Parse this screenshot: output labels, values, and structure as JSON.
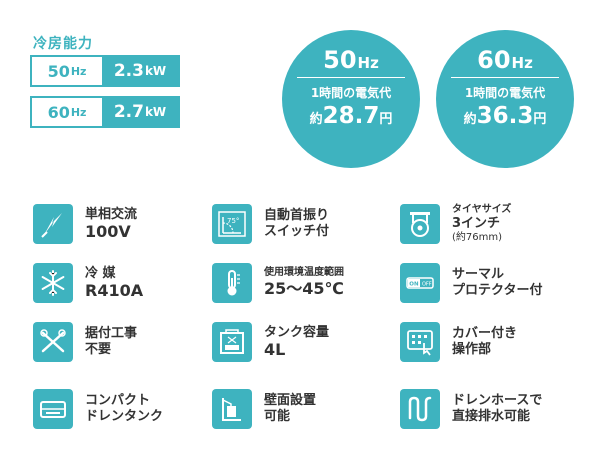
{
  "capacity": {
    "title": "冷房能力",
    "rows": [
      {
        "hz": "50",
        "hz_unit": "Hz",
        "kw": "2.3",
        "kw_unit": "kW"
      },
      {
        "hz": "60",
        "hz_unit": "Hz",
        "kw": "2.7",
        "kw_unit": "kW"
      }
    ]
  },
  "electricity": [
    {
      "hz": "50",
      "hz_unit": "Hz",
      "label": "1時間の電気代",
      "prefix": "約",
      "price": "28.7",
      "unit": "円"
    },
    {
      "hz": "60",
      "hz_unit": "Hz",
      "label": "1時間の電気代",
      "prefix": "約",
      "price": "36.3",
      "unit": "円"
    }
  ],
  "features": {
    "single_phase": {
      "line1": "単相交流",
      "line2": "100V",
      "icon": "lightning-plug-icon"
    },
    "swing": {
      "line1": "自動首振り",
      "line2": "スイッチ付",
      "icon": "swing-angle-icon",
      "angle": "75°"
    },
    "tire": {
      "line1": "タイヤサイズ",
      "line2": "3インチ",
      "line3": "(約76mm)",
      "icon": "caster-wheel-icon"
    },
    "refrigerant": {
      "line1": "冷 媒",
      "line2": "R410A",
      "icon": "snowflake-icon"
    },
    "temperature": {
      "line1": "使用環境温度範囲",
      "line2": "25〜45℃",
      "icon": "thermometer-icon"
    },
    "thermal": {
      "line1": "サーマル",
      "line2": "プロテクター付",
      "icon": "on-off-switch-icon",
      "on": "ON",
      "off": "OFF"
    },
    "no_install": {
      "line1": "据付工事",
      "line2": "不要",
      "icon": "no-tools-icon"
    },
    "tank": {
      "line1": "タンク容量",
      "line2": "4L",
      "icon": "water-tank-icon"
    },
    "cover": {
      "line1": "カバー付き",
      "line2": "操作部",
      "icon": "control-panel-icon"
    },
    "compact": {
      "line1": "コンパクト",
      "line2": "ドレンタンク",
      "icon": "drain-tank-icon"
    },
    "wall": {
      "line1": "壁面設置",
      "line2": "可能",
      "icon": "wall-mount-icon"
    },
    "hose": {
      "line1": "ドレンホースで",
      "line2": "直接排水可能",
      "icon": "drain-hose-icon"
    }
  }
}
